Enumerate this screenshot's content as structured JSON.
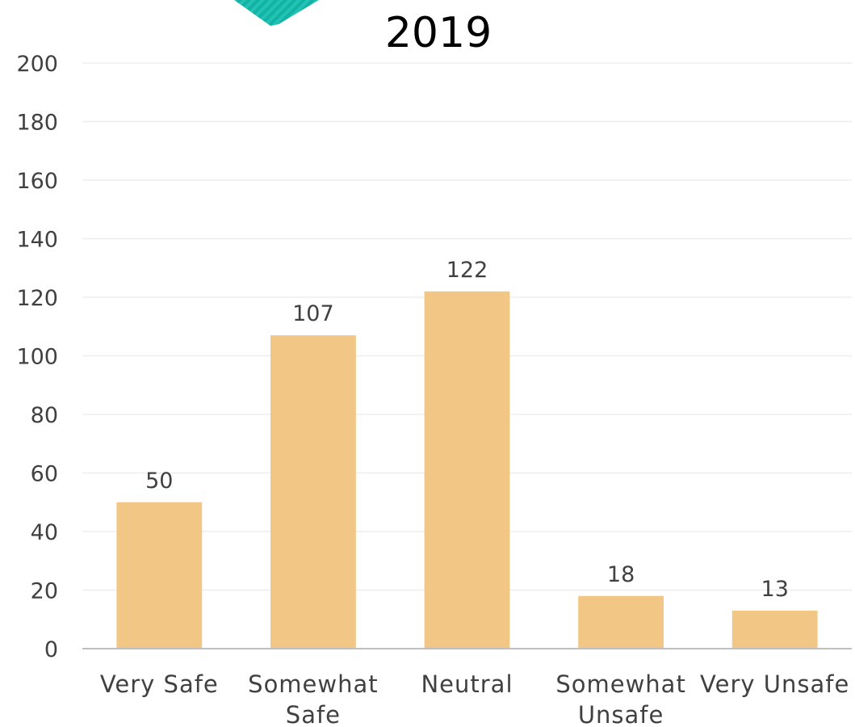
{
  "colors": {
    "bar": "#F2C685",
    "grid": "#EDEDED",
    "axis": "#BFBFBF",
    "text": "#404040",
    "decor": "#1CBFB0"
  },
  "chart_data": {
    "type": "bar",
    "title": "2019",
    "categories": [
      [
        "Very Safe"
      ],
      [
        "Somewhat",
        "Safe"
      ],
      [
        "Neutral"
      ],
      [
        "Somewhat",
        "Unsafe"
      ],
      [
        "Very Unsafe"
      ]
    ],
    "values": [
      50,
      107,
      122,
      18,
      13
    ],
    "ylim": [
      0,
      200
    ],
    "yticks": [
      0,
      20,
      40,
      60,
      80,
      100,
      120,
      140,
      160,
      180,
      200
    ],
    "grid": true,
    "legend": "none",
    "xlabel": "",
    "ylabel": ""
  }
}
